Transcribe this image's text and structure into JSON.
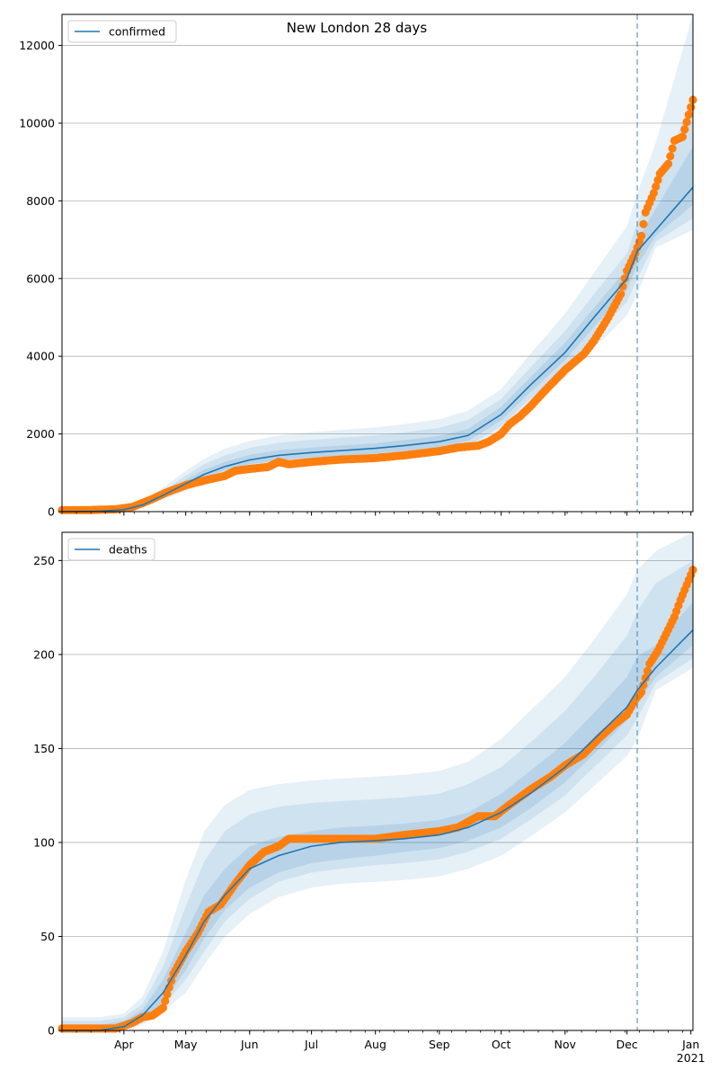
{
  "figure": {
    "title": "New London 28 days",
    "colors": {
      "line": "#1f77b4",
      "points": "#ff7f0e",
      "band": "#1f77b4",
      "grid": "#b0b0b0",
      "axes": "#000000"
    }
  },
  "chart_data": [
    {
      "type": "line",
      "legend": {
        "label": "confirmed",
        "placement": "upper-left"
      },
      "ylim": [
        0,
        12800
      ],
      "yticks": [
        0,
        2000,
        4000,
        6000,
        8000,
        10000,
        12000
      ],
      "ytick_labels": [
        "0",
        "2000",
        "4000",
        "6000",
        "8000",
        "10000",
        "12000"
      ],
      "grid": "y",
      "vline_date": "2020-12-06",
      "xlim": [
        "2020-03-02",
        "2021-01-02"
      ],
      "xticks": [
        "2020-04-01",
        "2020-05-01",
        "2020-06-01",
        "2020-07-01",
        "2020-08-01",
        "2020-09-01",
        "2020-10-01",
        "2020-11-01",
        "2020-12-01",
        "2021-01-01"
      ],
      "xtick_labels": [],
      "model": {
        "x": [
          "2020-03-02",
          "2020-03-20",
          "2020-04-01",
          "2020-04-10",
          "2020-04-20",
          "2020-05-01",
          "2020-05-10",
          "2020-05-20",
          "2020-06-01",
          "2020-06-15",
          "2020-07-01",
          "2020-07-15",
          "2020-08-01",
          "2020-08-15",
          "2020-09-01",
          "2020-09-15",
          "2020-10-01",
          "2020-10-15",
          "2020-11-01",
          "2020-11-15",
          "2020-12-01",
          "2020-12-06",
          "2020-12-15",
          "2021-01-02"
        ],
        "median": [
          0,
          10,
          50,
          170,
          420,
          720,
          960,
          1160,
          1330,
          1450,
          1520,
          1570,
          1630,
          1700,
          1800,
          1960,
          2500,
          3250,
          4100,
          5000,
          6000,
          6700,
          7250,
          8350
        ],
        "bands": [
          {
            "lower": [
              0,
              5,
              20,
              110,
              310,
              520,
              720,
              890,
              1040,
              1140,
              1200,
              1240,
              1290,
              1350,
              1440,
              1580,
              2050,
              2700,
              3450,
              4200,
              5050,
              5600,
              6800,
              7250
            ],
            "upper": [
              0,
              20,
              100,
              260,
              620,
              1050,
              1360,
              1620,
              1820,
              1960,
              2040,
              2100,
              2170,
              2250,
              2380,
              2600,
              3150,
              4050,
              5100,
              6150,
              7350,
              8200,
              9500,
              12800
            ]
          },
          {
            "lower": [
              0,
              7,
              30,
              130,
              350,
              580,
              790,
              970,
              1120,
              1220,
              1280,
              1330,
              1380,
              1440,
              1540,
              1690,
              2200,
              2900,
              3700,
              4500,
              5400,
              6000,
              6950,
              7550
            ],
            "upper": [
              0,
              16,
              80,
              230,
              540,
              920,
              1220,
              1450,
              1640,
              1770,
              1850,
              1900,
              1960,
              2040,
              2160,
              2360,
              2900,
              3700,
              4650,
              5600,
              6650,
              7450,
              8300,
              10700
            ]
          },
          {
            "lower": [
              0,
              8,
              40,
              150,
              385,
              640,
              870,
              1060,
              1220,
              1330,
              1390,
              1440,
              1500,
              1570,
              1670,
              1820,
              2350,
              3070,
              3900,
              4750,
              5700,
              6350,
              7100,
              7900
            ],
            "upper": [
              0,
              13,
              65,
              200,
              470,
              820,
              1080,
              1280,
              1460,
              1580,
              1650,
              1700,
              1760,
              1840,
              1950,
              2130,
              2700,
              3450,
              4350,
              5250,
              6250,
              7000,
              7800,
              9400
            ]
          }
        ]
      },
      "observed": {
        "x": [
          "2020-03-02",
          "2020-03-15",
          "2020-03-28",
          "2020-04-05",
          "2020-04-10",
          "2020-04-15",
          "2020-04-22",
          "2020-05-01",
          "2020-05-10",
          "2020-05-20",
          "2020-05-25",
          "2020-06-01",
          "2020-06-10",
          "2020-06-15",
          "2020-06-20",
          "2020-07-01",
          "2020-07-15",
          "2020-08-01",
          "2020-08-15",
          "2020-09-01",
          "2020-09-10",
          "2020-09-20",
          "2020-09-25",
          "2020-10-01",
          "2020-10-05",
          "2020-10-10",
          "2020-10-15",
          "2020-10-22",
          "2020-11-01",
          "2020-11-10",
          "2020-11-15",
          "2020-11-22",
          "2020-11-28",
          "2020-12-01",
          "2020-12-05",
          "2020-12-08",
          "2020-12-10",
          "2020-12-14",
          "2020-12-17",
          "2020-12-21",
          "2020-12-24",
          "2020-12-28",
          "2021-01-02"
        ],
        "y": [
          40,
          40,
          60,
          120,
          220,
          330,
          500,
          680,
          800,
          920,
          1050,
          1100,
          1150,
          1280,
          1220,
          1280,
          1340,
          1380,
          1450,
          1560,
          1650,
          1700,
          1800,
          2000,
          2250,
          2450,
          2700,
          3100,
          3650,
          4050,
          4400,
          5000,
          5600,
          6200,
          6650,
          7100,
          7700,
          8200,
          8700,
          8950,
          9550,
          9650,
          10600
        ]
      }
    },
    {
      "type": "line",
      "legend": {
        "label": "deaths",
        "placement": "upper-left"
      },
      "ylim": [
        0,
        265
      ],
      "yticks": [
        0,
        50,
        100,
        150,
        200,
        250
      ],
      "ytick_labels": [
        "0",
        "50",
        "100",
        "150",
        "200",
        "250"
      ],
      "grid": "y",
      "vline_date": "2020-12-06",
      "xlim": [
        "2020-03-02",
        "2021-01-02"
      ],
      "xticks": [
        "2020-04-01",
        "2020-05-01",
        "2020-06-01",
        "2020-07-01",
        "2020-08-01",
        "2020-09-01",
        "2020-10-01",
        "2020-11-01",
        "2020-12-01",
        "2021-01-01"
      ],
      "xtick_labels": [
        "Apr",
        "May",
        "Jun",
        "Jul",
        "Aug",
        "Sep",
        "Oct",
        "Nov",
        "Dec",
        "Jan\n2021"
      ],
      "model": {
        "x": [
          "2020-03-02",
          "2020-03-20",
          "2020-04-01",
          "2020-04-10",
          "2020-04-20",
          "2020-05-01",
          "2020-05-10",
          "2020-05-20",
          "2020-06-01",
          "2020-06-15",
          "2020-07-01",
          "2020-07-15",
          "2020-08-01",
          "2020-08-15",
          "2020-09-01",
          "2020-09-15",
          "2020-10-01",
          "2020-10-15",
          "2020-11-01",
          "2020-11-15",
          "2020-12-01",
          "2020-12-06",
          "2020-12-15",
          "2021-01-02"
        ],
        "median": [
          0,
          0,
          2,
          8,
          20,
          40,
          58,
          72,
          86,
          93,
          98,
          100,
          101,
          102,
          104,
          108,
          116,
          126,
          140,
          155,
          172,
          181,
          193,
          213
        ],
        "bands": [
          {
            "lower": [
              0,
              0,
              0,
              3,
              10,
              20,
              35,
              50,
              62,
              71,
              76,
              78,
              79,
              80,
              82,
              86,
              93,
              103,
              116,
              130,
              146,
              155,
              181,
              193
            ],
            "upper": [
              7,
              7,
              9,
              18,
              42,
              80,
              106,
              120,
              128,
              131,
              133,
              134,
              135,
              136,
              138,
              143,
              155,
              170,
              188,
              208,
              232,
              245,
              255,
              265
            ]
          },
          {
            "lower": [
              0,
              0,
              1,
              4,
              13,
              27,
              42,
              58,
              70,
              79,
              84,
              86,
              88,
              89,
              91,
              95,
              102,
              112,
              125,
              140,
              157,
              166,
              185,
              198
            ],
            "upper": [
              5,
              5,
              7,
              14,
              34,
              66,
              90,
              106,
              115,
              119,
              121,
              122,
              123,
              124,
              126,
              131,
              140,
              153,
              170,
              188,
              210,
              223,
              238,
              250
            ]
          },
          {
            "lower": [
              0,
              0,
              1,
              5,
              15,
              32,
              49,
              64,
              76,
              84,
              89,
              91,
              93,
              95,
              97,
              101,
              108,
              118,
              132,
              147,
              165,
              174,
              188,
              205
            ],
            "upper": [
              3,
              3,
              5,
              11,
              27,
              52,
              72,
              86,
              98,
              103,
              106,
              108,
              109,
              110,
              112,
              116,
              126,
              138,
              153,
              169,
              188,
              199,
              205,
              228
            ]
          }
        ]
      },
      "observed": {
        "x": [
          "2020-03-02",
          "2020-03-20",
          "2020-03-28",
          "2020-04-05",
          "2020-04-10",
          "2020-04-15",
          "2020-04-20",
          "2020-04-25",
          "2020-05-01",
          "2020-05-07",
          "2020-05-12",
          "2020-05-18",
          "2020-05-25",
          "2020-06-01",
          "2020-06-08",
          "2020-06-15",
          "2020-06-20",
          "2020-07-01",
          "2020-07-15",
          "2020-08-01",
          "2020-08-15",
          "2020-09-01",
          "2020-09-10",
          "2020-09-20",
          "2020-09-28",
          "2020-10-05",
          "2020-10-15",
          "2020-10-25",
          "2020-11-01",
          "2020-11-10",
          "2020-11-17",
          "2020-11-25",
          "2020-12-01",
          "2020-12-05",
          "2020-12-08",
          "2020-12-12",
          "2020-12-16",
          "2020-12-20",
          "2020-12-24",
          "2020-12-27",
          "2021-01-02"
        ],
        "y": [
          1,
          1,
          1,
          4,
          7,
          8,
          12,
          30,
          42,
          52,
          63,
          67,
          78,
          88,
          95,
          98,
          102,
          102,
          102,
          102,
          104,
          106,
          108,
          114,
          114,
          120,
          128,
          135,
          141,
          147,
          155,
          163,
          168,
          176,
          180,
          195,
          202,
          211,
          220,
          229,
          245
        ]
      }
    }
  ]
}
